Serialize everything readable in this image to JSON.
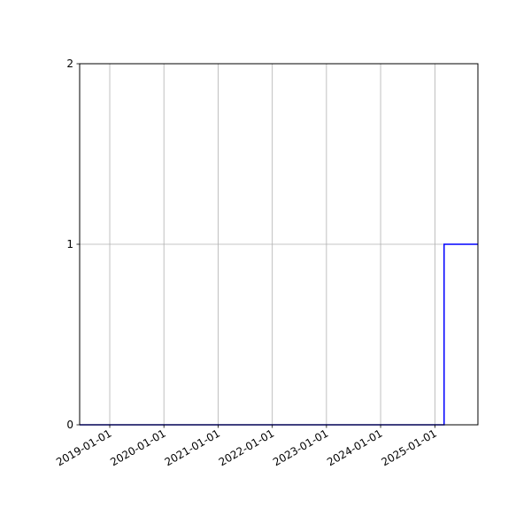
{
  "chart_data": {
    "type": "line",
    "step": "post",
    "title": "",
    "xlabel": "",
    "ylabel": "",
    "xlim": [
      "2018-06-12",
      "2025-10-18"
    ],
    "ylim": [
      0,
      2
    ],
    "grid": true,
    "x_ticks": [
      "2019-01-01",
      "2020-01-01",
      "2021-01-01",
      "2022-01-01",
      "2023-01-01",
      "2024-01-01",
      "2025-01-01"
    ],
    "y_ticks": [
      0,
      1,
      2
    ],
    "series": [
      {
        "color": "#0000ff",
        "x": [
          "2018-06-12",
          "2025-03-04",
          "2025-10-18"
        ],
        "y": [
          0,
          1,
          1
        ]
      }
    ]
  }
}
